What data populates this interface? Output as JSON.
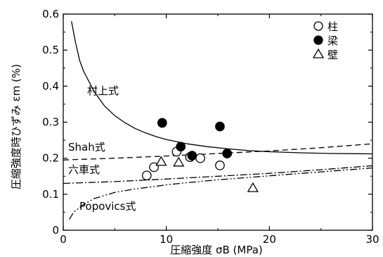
{
  "chart_data": {
    "type": "scatter",
    "xlabel": "圧縮強度 σB (MPa)",
    "ylabel": "圧縮強度時ひずみ εm (%)",
    "xlim": [
      0,
      30
    ],
    "ylim": [
      0,
      0.6
    ],
    "xticks": [
      0,
      10,
      20,
      30
    ],
    "yticks": [
      0,
      0.1,
      0.2,
      0.3,
      0.4,
      0.5,
      0.6
    ],
    "ytick_labels": [
      "0",
      "0.1",
      "0.2",
      "0.3",
      "0.4",
      "0.5",
      "0.6"
    ],
    "grid": false,
    "legend_position": "top-right",
    "series": [
      {
        "name": "柱",
        "marker": "open-circle",
        "points": [
          {
            "x": 8.1,
            "y": 0.152
          },
          {
            "x": 8.8,
            "y": 0.175
          },
          {
            "x": 11.0,
            "y": 0.218
          },
          {
            "x": 12.3,
            "y": 0.203
          },
          {
            "x": 13.3,
            "y": 0.2
          },
          {
            "x": 15.2,
            "y": 0.18
          }
        ]
      },
      {
        "name": "梁",
        "marker": "filled-circle",
        "points": [
          {
            "x": 9.6,
            "y": 0.298
          },
          {
            "x": 11.4,
            "y": 0.232
          },
          {
            "x": 12.5,
            "y": 0.207
          },
          {
            "x": 15.2,
            "y": 0.288
          },
          {
            "x": 15.9,
            "y": 0.213
          }
        ]
      },
      {
        "name": "壁",
        "marker": "open-triangle",
        "points": [
          {
            "x": 9.5,
            "y": 0.19
          },
          {
            "x": 11.2,
            "y": 0.188
          },
          {
            "x": 18.4,
            "y": 0.117
          }
        ]
      }
    ],
    "curves": [
      {
        "name": "村上式",
        "style": "solid",
        "points": [
          [
            0.8,
            0.58
          ],
          [
            1.2,
            0.52
          ],
          [
            1.6,
            0.47
          ],
          [
            2.0,
            0.44
          ],
          [
            3.0,
            0.385
          ],
          [
            4.0,
            0.345
          ],
          [
            5.0,
            0.318
          ],
          [
            6.0,
            0.298
          ],
          [
            7.0,
            0.282
          ],
          [
            8.0,
            0.27
          ],
          [
            9.0,
            0.26
          ],
          [
            10.0,
            0.252
          ],
          [
            12.0,
            0.24
          ],
          [
            14.0,
            0.232
          ],
          [
            16.0,
            0.226
          ],
          [
            18.0,
            0.221
          ],
          [
            20.0,
            0.218
          ],
          [
            23.0,
            0.215
          ],
          [
            26.0,
            0.213
          ],
          [
            30.0,
            0.212
          ]
        ]
      },
      {
        "name": "Shah式",
        "style": "dashed",
        "points": [
          [
            0.0,
            0.195
          ],
          [
            5.0,
            0.2
          ],
          [
            10.0,
            0.206
          ],
          [
            15.0,
            0.213
          ],
          [
            20.0,
            0.22
          ],
          [
            25.0,
            0.229
          ],
          [
            30.0,
            0.24
          ]
        ]
      },
      {
        "name": "六車式",
        "style": "dash-dot",
        "points": [
          [
            0.0,
            0.13
          ],
          [
            5.0,
            0.135
          ],
          [
            10.0,
            0.142
          ],
          [
            15.0,
            0.15
          ],
          [
            20.0,
            0.158
          ],
          [
            25.0,
            0.168
          ],
          [
            30.0,
            0.179
          ]
        ]
      },
      {
        "name": "Popovics式",
        "style": "dash-dot-dot",
        "points": [
          [
            0.6,
            0.03
          ],
          [
            1.0,
            0.05
          ],
          [
            2.0,
            0.072
          ],
          [
            3.0,
            0.088
          ],
          [
            5.0,
            0.105
          ],
          [
            7.0,
            0.115
          ],
          [
            9.0,
            0.122
          ],
          [
            10.0,
            0.126
          ],
          [
            12.0,
            0.132
          ],
          [
            15.0,
            0.14
          ],
          [
            20.0,
            0.151
          ],
          [
            25.0,
            0.162
          ],
          [
            30.0,
            0.173
          ]
        ]
      }
    ]
  }
}
